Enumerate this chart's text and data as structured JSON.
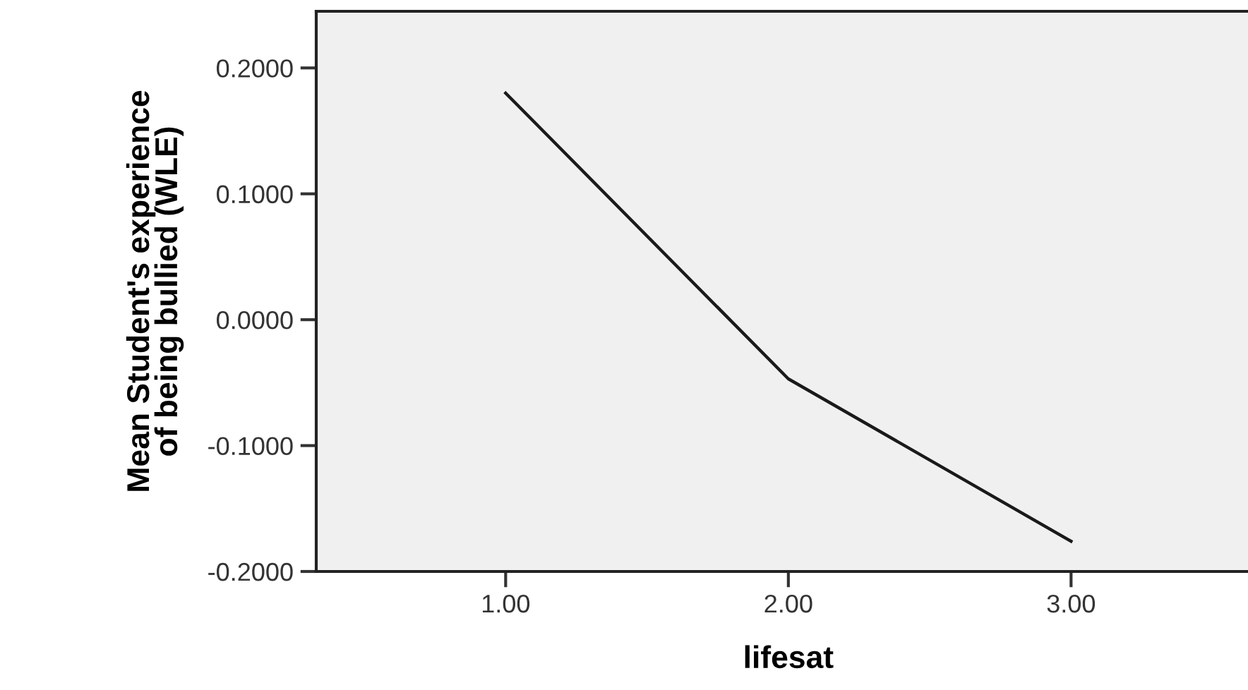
{
  "chart_data": {
    "type": "line",
    "xlabel": "lifesat",
    "ylabel": "Mean Student's experience\nof being bullied (WLE)",
    "categories": [
      "1.00",
      "2.00",
      "3.00"
    ],
    "series": [
      {
        "color": "#1a1a1a",
        "values": [
          0.18,
          -0.047,
          -0.176
        ]
      }
    ],
    "ylim": [
      -0.2,
      0.245
    ],
    "yticks": [
      {
        "value": -0.2,
        "label": "-0.2000"
      },
      {
        "value": -0.1,
        "label": "-0.1000"
      },
      {
        "value": 0,
        "label": "0.0000"
      },
      {
        "value": 0.1,
        "label": "0.1000"
      },
      {
        "value": 0.2,
        "label": "0.2000"
      }
    ],
    "grid": false,
    "legend": false,
    "marker": "none",
    "line_style": "solid"
  }
}
